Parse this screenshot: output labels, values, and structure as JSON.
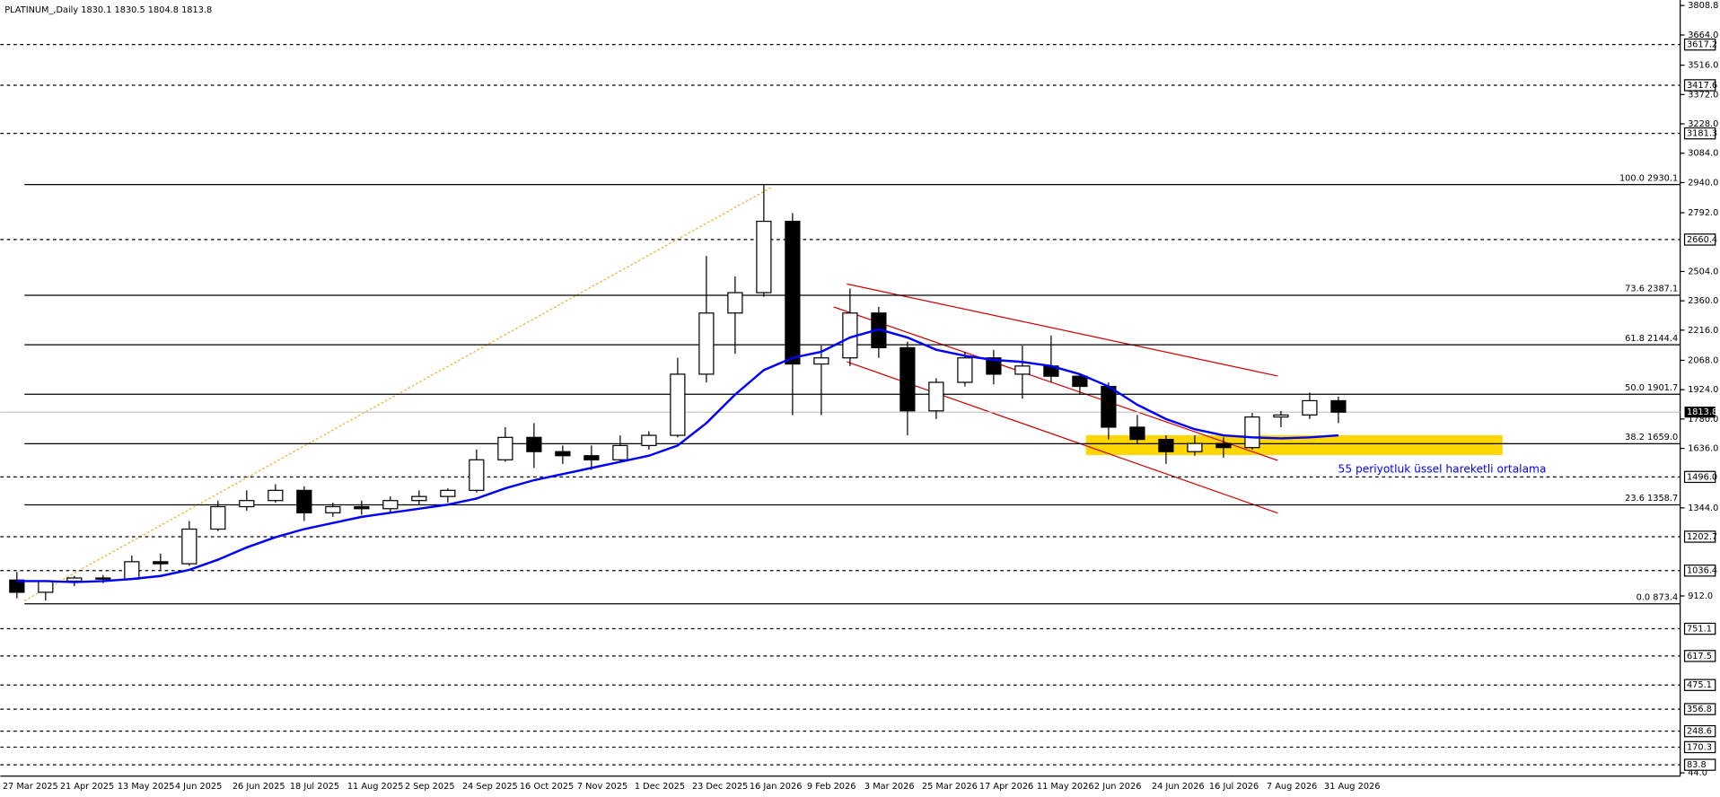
{
  "chart_data": {
    "type": "candlestick",
    "title": "PLATINUM_,Daily  1830.1 1830.5 1804.8 1813.8",
    "annotation": "55 periyotluk üssel hareketli ortalama",
    "categories": [
      "27 Mar 2025",
      null,
      "21 Apr 2025",
      null,
      "13 May 2025",
      null,
      "4 Jun 2025",
      null,
      "26 Jun 2025",
      null,
      "18 Jul 2025",
      null,
      "11 Aug 2025",
      null,
      "2 Sep 2025",
      null,
      "24 Sep 2025",
      null,
      "16 Oct 2025",
      null,
      "7 Nov 2025",
      null,
      "1 Dec 2025",
      null,
      "23 Dec 2025",
      null,
      "16 Jan 2026",
      null,
      "9 Feb 2026",
      null,
      "3 Mar 2026",
      null,
      "25 Mar 2026",
      null,
      "17 Apr 2026",
      null,
      "11 May 2026",
      null,
      "2 Jun 2026",
      null,
      "24 Jun 2026",
      null,
      "16 Jul 2026",
      null,
      "7 Aug 2026",
      null,
      "31 Aug 2026"
    ],
    "open": [
      990,
      930,
      985,
      1000,
      995,
      1080,
      1070,
      1240,
      1350,
      1380,
      1430,
      1320,
      1350,
      1340,
      1380,
      1400,
      1430,
      1580,
      1690,
      1620,
      1600,
      1580,
      1650,
      1700,
      2000,
      2300,
      2400,
      2750,
      2050,
      2080,
      2300,
      2130,
      1820,
      1960,
      2080,
      2000,
      2040,
      1990,
      1940,
      1740,
      1680,
      1620,
      1660,
      1640,
      1790,
      1800,
      1870
    ],
    "high": [
      1030,
      990,
      1010,
      1015,
      1110,
      1120,
      1280,
      1380,
      1430,
      1460,
      1450,
      1370,
      1380,
      1400,
      1430,
      1440,
      1630,
      1740,
      1760,
      1650,
      1650,
      1700,
      1720,
      2080,
      2580,
      2480,
      2930,
      2790,
      2140,
      2420,
      2330,
      2160,
      1980,
      2110,
      2120,
      2140,
      2190,
      2000,
      1960,
      1800,
      1700,
      1700,
      1690,
      1810,
      1820,
      1910,
      1890
    ],
    "low": [
      900,
      890,
      960,
      975,
      990,
      1040,
      1060,
      1230,
      1330,
      1370,
      1280,
      1300,
      1310,
      1320,
      1360,
      1370,
      1420,
      1570,
      1540,
      1560,
      1530,
      1570,
      1630,
      1690,
      1960,
      2100,
      2380,
      1800,
      1800,
      2040,
      2080,
      1700,
      1780,
      1940,
      1950,
      1880,
      1960,
      1900,
      1680,
      1660,
      1560,
      1600,
      1590,
      1630,
      1740,
      1780,
      1760
    ],
    "close": [
      930,
      985,
      1000,
      995,
      1080,
      1070,
      1240,
      1350,
      1380,
      1430,
      1320,
      1350,
      1340,
      1380,
      1400,
      1430,
      1580,
      1690,
      1620,
      1600,
      1580,
      1650,
      1700,
      2000,
      2300,
      2400,
      2750,
      2050,
      2080,
      2300,
      2130,
      1820,
      1960,
      2080,
      2000,
      2040,
      1990,
      1940,
      1740,
      1680,
      1620,
      1660,
      1640,
      1790,
      1800,
      1870,
      1813.8
    ],
    "ema": {
      "color": "#0000ff",
      "values": [
        985,
        985,
        980,
        985,
        995,
        1010,
        1040,
        1090,
        1150,
        1200,
        1240,
        1270,
        1300,
        1320,
        1340,
        1360,
        1390,
        1440,
        1480,
        1510,
        1540,
        1570,
        1600,
        1650,
        1760,
        1900,
        2020,
        2080,
        2110,
        2180,
        2220,
        2180,
        2120,
        2090,
        2070,
        2060,
        2040,
        2000,
        1940,
        1850,
        1780,
        1730,
        1700,
        1690,
        1685,
        1690,
        1700
      ]
    },
    "ylim": [
      44.0,
      3808.8
    ],
    "yticks": [
      3808.8,
      {
        "value": 3664,
        "label": "3664.0"
      },
      {
        "value": 3516,
        "label": "3516.0"
      },
      {
        "value": 3372,
        "label": "3372.0"
      },
      {
        "value": 3228,
        "label": "3228.0"
      },
      {
        "value": 3084,
        "label": "3084.0"
      },
      {
        "value": 2940,
        "label": "2940.0"
      },
      {
        "value": 2792,
        "label": "2792.0"
      },
      {
        "value": 2504,
        "label": "2504.0"
      },
      {
        "value": 2360,
        "label": "2360.0"
      },
      {
        "value": 2216,
        "label": "2216.0"
      },
      {
        "value": 2068,
        "label": "2068.0"
      },
      {
        "value": 1924,
        "label": "1924.0"
      },
      {
        "value": 1780,
        "label": "1780.0"
      },
      {
        "value": 1636,
        "label": "1636.0"
      },
      {
        "value": 1344,
        "label": "1344.0"
      },
      {
        "value": 912,
        "label": "912.0"
      },
      {
        "value": 44,
        "label": "44.0"
      }
    ],
    "levels": [
      3617.2,
      3417.6,
      3181.3,
      2660.4,
      {
        "value": 1496,
        "label": "1496.0"
      },
      1202.7,
      1036.4,
      751.1,
      617.5,
      475.1,
      356.8,
      248.6,
      170.3,
      83.8
    ],
    "last_price": 1813.8,
    "fib_levels": [
      {
        "value": 2930.1,
        "label": "100.0 2930.1"
      },
      {
        "value": 2387.1,
        "label": "73.6 2387.1"
      },
      {
        "value": 2144.4,
        "label": "61.8 2144.4"
      },
      {
        "value": 1901.7,
        "label": "50.0 1901.7"
      },
      {
        "value": 1659.0,
        "label": "38.2 1659.0"
      },
      {
        "value": 1358.7,
        "label": "23.6 1358.7"
      },
      {
        "value": 873.4,
        "label": "0.0 873.4"
      }
    ]
  }
}
